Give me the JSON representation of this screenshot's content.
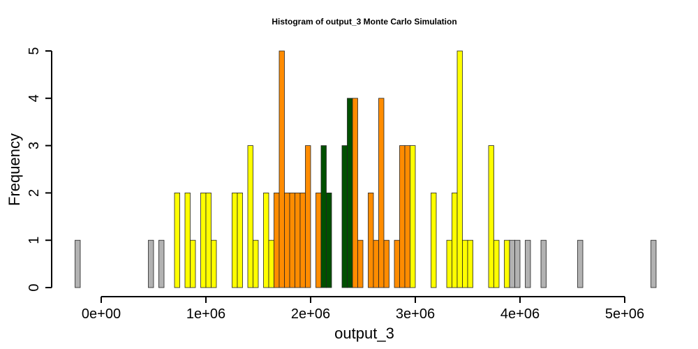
{
  "chart_data": {
    "type": "bar",
    "title": "Histogram of  output_3  Monte Carlo Simulation",
    "xlabel": "output_3",
    "ylabel": "Frequency",
    "xlim": [
      -250000,
      5300000
    ],
    "ylim": [
      0,
      5
    ],
    "bin_width": 50000,
    "x_ticks": [
      0,
      1000000,
      2000000,
      3000000,
      4000000,
      5000000
    ],
    "x_tick_labels": [
      "0e+00",
      "1e+06",
      "2e+06",
      "3e+06",
      "4e+06",
      "5e+06"
    ],
    "y_ticks": [
      0,
      1,
      2,
      3,
      4,
      5
    ],
    "y_tick_labels": [
      "0",
      "1",
      "2",
      "3",
      "4",
      "5"
    ],
    "grid": false,
    "legend": "none",
    "color_groups": {
      "gray": "#b2b2b2",
      "yellow": "#ffff00",
      "orange": "#ff8c00",
      "green": "#005000"
    },
    "bins": [
      {
        "x_start": -250000,
        "count": 1,
        "color": "gray"
      },
      {
        "x_start": 450000,
        "count": 1,
        "color": "gray"
      },
      {
        "x_start": 550000,
        "count": 1,
        "color": "gray"
      },
      {
        "x_start": 700000,
        "count": 2,
        "color": "yellow"
      },
      {
        "x_start": 800000,
        "count": 2,
        "color": "yellow"
      },
      {
        "x_start": 850000,
        "count": 1,
        "color": "yellow"
      },
      {
        "x_start": 950000,
        "count": 2,
        "color": "yellow"
      },
      {
        "x_start": 1000000,
        "count": 2,
        "color": "yellow"
      },
      {
        "x_start": 1050000,
        "count": 1,
        "color": "yellow"
      },
      {
        "x_start": 1250000,
        "count": 2,
        "color": "yellow"
      },
      {
        "x_start": 1300000,
        "count": 2,
        "color": "yellow"
      },
      {
        "x_start": 1400000,
        "count": 3,
        "color": "yellow"
      },
      {
        "x_start": 1450000,
        "count": 1,
        "color": "yellow"
      },
      {
        "x_start": 1550000,
        "count": 2,
        "color": "yellow"
      },
      {
        "x_start": 1600000,
        "count": 1,
        "color": "yellow"
      },
      {
        "x_start": 1650000,
        "count": 2,
        "color": "orange"
      },
      {
        "x_start": 1700000,
        "count": 5,
        "color": "orange"
      },
      {
        "x_start": 1750000,
        "count": 2,
        "color": "orange"
      },
      {
        "x_start": 1800000,
        "count": 2,
        "color": "orange"
      },
      {
        "x_start": 1850000,
        "count": 2,
        "color": "orange"
      },
      {
        "x_start": 1900000,
        "count": 2,
        "color": "orange"
      },
      {
        "x_start": 1950000,
        "count": 3,
        "color": "orange"
      },
      {
        "x_start": 2050000,
        "count": 2,
        "color": "orange"
      },
      {
        "x_start": 2100000,
        "count": 3,
        "color": "green"
      },
      {
        "x_start": 2150000,
        "count": 2,
        "color": "green"
      },
      {
        "x_start": 2300000,
        "count": 3,
        "color": "green"
      },
      {
        "x_start": 2350000,
        "count": 4,
        "color": "green"
      },
      {
        "x_start": 2400000,
        "count": 4,
        "color": "orange"
      },
      {
        "x_start": 2450000,
        "count": 1,
        "color": "orange"
      },
      {
        "x_start": 2550000,
        "count": 2,
        "color": "orange"
      },
      {
        "x_start": 2600000,
        "count": 1,
        "color": "orange"
      },
      {
        "x_start": 2650000,
        "count": 4,
        "color": "orange"
      },
      {
        "x_start": 2700000,
        "count": 1,
        "color": "orange"
      },
      {
        "x_start": 2800000,
        "count": 1,
        "color": "orange"
      },
      {
        "x_start": 2850000,
        "count": 3,
        "color": "orange"
      },
      {
        "x_start": 2900000,
        "count": 3,
        "color": "orange"
      },
      {
        "x_start": 2950000,
        "count": 3,
        "color": "yellow"
      },
      {
        "x_start": 3150000,
        "count": 2,
        "color": "yellow"
      },
      {
        "x_start": 3300000,
        "count": 1,
        "color": "yellow"
      },
      {
        "x_start": 3350000,
        "count": 2,
        "color": "yellow"
      },
      {
        "x_start": 3400000,
        "count": 5,
        "color": "yellow"
      },
      {
        "x_start": 3450000,
        "count": 1,
        "color": "yellow"
      },
      {
        "x_start": 3500000,
        "count": 1,
        "color": "yellow"
      },
      {
        "x_start": 3700000,
        "count": 3,
        "color": "yellow"
      },
      {
        "x_start": 3750000,
        "count": 1,
        "color": "yellow"
      },
      {
        "x_start": 3850000,
        "count": 1,
        "color": "yellow"
      },
      {
        "x_start": 3900000,
        "count": 1,
        "color": "gray"
      },
      {
        "x_start": 3950000,
        "count": 1,
        "color": "gray"
      },
      {
        "x_start": 4050000,
        "count": 1,
        "color": "gray"
      },
      {
        "x_start": 4200000,
        "count": 1,
        "color": "gray"
      },
      {
        "x_start": 4550000,
        "count": 1,
        "color": "gray"
      },
      {
        "x_start": 5250000,
        "count": 1,
        "color": "gray"
      }
    ]
  }
}
